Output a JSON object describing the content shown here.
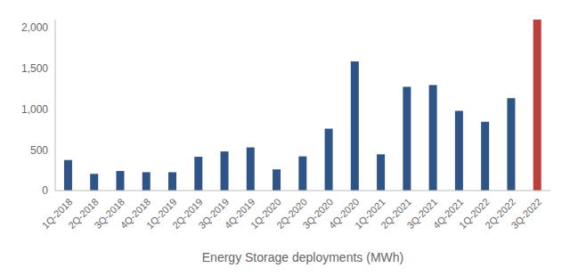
{
  "chart_data": {
    "type": "bar",
    "x_label": "Energy Storage deployments (MWh)",
    "categories": [
      "1Q-2018",
      "2Q-2018",
      "3Q-2018",
      "4Q-2018",
      "1Q-2019",
      "2Q-2019",
      "3Q-2019",
      "4Q-2019",
      "1Q-2020",
      "2Q-2020",
      "3Q-2020",
      "4Q-2020",
      "1Q-2021",
      "2Q-2021",
      "3Q-2021",
      "4Q-2021",
      "1Q-2022",
      "2Q-2022",
      "3Q-2022"
    ],
    "values": [
      375,
      205,
      240,
      225,
      225,
      415,
      480,
      530,
      260,
      420,
      760,
      1585,
      445,
      1275,
      1295,
      980,
      845,
      1135,
      2100
    ],
    "colors": [
      "#2f5487",
      "#2f5487",
      "#2f5487",
      "#2f5487",
      "#2f5487",
      "#2f5487",
      "#2f5487",
      "#2f5487",
      "#2f5487",
      "#2f5487",
      "#2f5487",
      "#2f5487",
      "#2f5487",
      "#2f5487",
      "#2f5487",
      "#2f5487",
      "#2f5487",
      "#2f5487",
      "#b9403b"
    ],
    "ylim": [
      0,
      2100
    ],
    "yticks": [
      0,
      500,
      {
        "value": 1000,
        "label": "1,000"
      },
      {
        "value": 1500,
        "label": "1,500"
      },
      {
        "value": 2000,
        "label": "2,000"
      }
    ],
    "grid": false
  }
}
